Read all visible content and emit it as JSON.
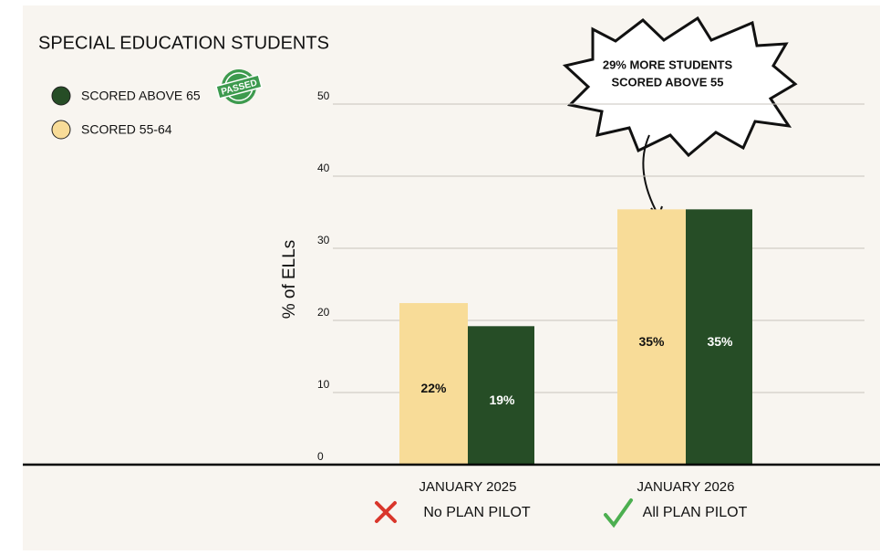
{
  "chart_data": {
    "type": "bar",
    "title": "SPECIAL EDUCATION STUDENTS",
    "y_label": "% of ELLs",
    "categories": [
      "JANUARY 2025",
      "JANUARY 2026"
    ],
    "category_notes": [
      "No PLAN PILOT",
      "All PLAN PILOT"
    ],
    "series": [
      {
        "name": "SCORED 55-64",
        "color": "#f8dc98",
        "values": [
          22.4,
          35.4
        ],
        "value_labels": [
          "22%",
          "35%"
        ]
      },
      {
        "name": "SCORED ABOVE 65",
        "color": "#264d26",
        "values": [
          19.2,
          35.4
        ],
        "value_labels": [
          "19%",
          "35%"
        ]
      }
    ],
    "legend_order": [
      1,
      0
    ],
    "ylim": [
      0,
      50
    ],
    "yticks": [
      0,
      10,
      20,
      30,
      40,
      50
    ],
    "grid": true,
    "annotation": [
      "29% MORE STUDENTS",
      "SCORED ABOVE 55"
    ],
    "stamp": "PASSED"
  }
}
